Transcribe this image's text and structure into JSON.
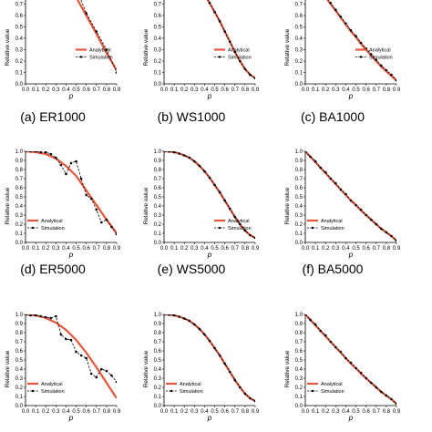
{
  "chart_data": [
    {
      "type": "line",
      "title": "",
      "caption": "(a) ER1000",
      "xlabel": "p",
      "ylabel": "Relative value",
      "xlim": [
        0,
        0.9
      ],
      "ylim": [
        0,
        1.0
      ],
      "xticks": [
        "0.0",
        "0.1",
        "0.2",
        "0.3",
        "0.4",
        "0.5",
        "0.6",
        "0.7",
        "0.8",
        "0.9"
      ],
      "yticks": [
        "0.0",
        "0.1",
        "0.2",
        "0.3",
        "0.4",
        "0.5",
        "0.6",
        "0.7",
        "0.8",
        "0.9"
      ],
      "legend": "bottom-right",
      "legend_entries": [
        "Analytical",
        "Simulation"
      ],
      "series": [
        {
          "name": "Analytical",
          "x": [
            0.0,
            0.1,
            0.2,
            0.3,
            0.4,
            0.5,
            0.6,
            0.7,
            0.8,
            0.9
          ],
          "values": [
            1.0,
            0.997,
            0.98,
            0.94,
            0.87,
            0.76,
            0.6,
            0.44,
            0.27,
            0.12
          ]
        },
        {
          "name": "Simulation",
          "x": [
            0.0,
            0.1,
            0.2,
            0.3,
            0.4,
            0.5,
            0.6,
            0.7,
            0.8,
            0.9
          ],
          "values": [
            1.0,
            1.0,
            0.99,
            0.98,
            0.9,
            0.84,
            0.62,
            0.46,
            0.3,
            0.1
          ]
        }
      ]
    },
    {
      "type": "line",
      "title": "",
      "caption": "(b) WS1000",
      "xlabel": "p",
      "ylabel": "Relative value",
      "xlim": [
        0,
        0.9
      ],
      "ylim": [
        0,
        1.0
      ],
      "xticks": [
        "0.0",
        "0.1",
        "0.2",
        "0.3",
        "0.4",
        "0.5",
        "0.6",
        "0.7",
        "0.8",
        "0.9"
      ],
      "yticks": [
        "0.0",
        "0.1",
        "0.2",
        "0.3",
        "0.4",
        "0.5",
        "0.6",
        "0.7",
        "0.8",
        "0.9"
      ],
      "legend": "bottom-right",
      "legend_entries": [
        "Analytical",
        "Simulation"
      ],
      "series": [
        {
          "name": "Analytical",
          "x": [
            0.0,
            0.05,
            0.1,
            0.15,
            0.2,
            0.25,
            0.3,
            0.35,
            0.4,
            0.45,
            0.5,
            0.55,
            0.6,
            0.65,
            0.7,
            0.75,
            0.8,
            0.85,
            0.9
          ],
          "values": [
            1.0,
            0.997,
            0.99,
            0.975,
            0.955,
            0.93,
            0.89,
            0.84,
            0.78,
            0.71,
            0.63,
            0.55,
            0.46,
            0.37,
            0.28,
            0.2,
            0.13,
            0.08,
            0.05
          ]
        },
        {
          "name": "Simulation",
          "x": [
            0.0,
            0.05,
            0.1,
            0.15,
            0.2,
            0.25,
            0.3,
            0.35,
            0.4,
            0.45,
            0.5,
            0.55,
            0.6,
            0.65,
            0.7,
            0.75,
            0.8,
            0.85,
            0.9
          ],
          "values": [
            1.0,
            0.997,
            0.99,
            0.975,
            0.955,
            0.93,
            0.89,
            0.84,
            0.78,
            0.71,
            0.63,
            0.55,
            0.46,
            0.37,
            0.28,
            0.2,
            0.13,
            0.08,
            0.05
          ]
        }
      ]
    },
    {
      "type": "line",
      "title": "",
      "caption": "(c) BA1000",
      "xlabel": "p",
      "ylabel": "Relative value",
      "xlim": [
        0,
        0.9
      ],
      "ylim": [
        0,
        1.0
      ],
      "xticks": [
        "0.0",
        "0.1",
        "0.2",
        "0.3",
        "0.4",
        "0.5",
        "0.6",
        "0.7",
        "0.8",
        "0.9"
      ],
      "yticks": [
        "0.0",
        "0.1",
        "0.2",
        "0.3",
        "0.4",
        "0.5",
        "0.6",
        "0.7",
        "0.8",
        "0.9"
      ],
      "legend": "bottom-right",
      "legend_entries": [
        "Analytical",
        "Simulation"
      ],
      "series": [
        {
          "name": "Analytical",
          "x": [
            0.0,
            0.05,
            0.1,
            0.15,
            0.2,
            0.25,
            0.3,
            0.35,
            0.4,
            0.45,
            0.5,
            0.55,
            0.6,
            0.65,
            0.7,
            0.75,
            0.8,
            0.85,
            0.9
          ],
          "values": [
            1.0,
            0.94,
            0.88,
            0.82,
            0.76,
            0.7,
            0.64,
            0.58,
            0.52,
            0.46,
            0.41,
            0.35,
            0.3,
            0.25,
            0.2,
            0.15,
            0.11,
            0.07,
            0.03
          ]
        },
        {
          "name": "Simulation",
          "x": [
            0.0,
            0.05,
            0.1,
            0.15,
            0.2,
            0.25,
            0.3,
            0.35,
            0.4,
            0.45,
            0.5,
            0.55,
            0.6,
            0.65,
            0.7,
            0.75,
            0.8,
            0.85,
            0.9
          ],
          "values": [
            1.0,
            0.95,
            0.89,
            0.83,
            0.77,
            0.71,
            0.65,
            0.59,
            0.53,
            0.47,
            0.42,
            0.36,
            0.31,
            0.26,
            0.21,
            0.16,
            0.12,
            0.08,
            0.03
          ]
        }
      ]
    },
    {
      "type": "line",
      "title": "",
      "caption": "(d) ER5000",
      "xlabel": "p",
      "ylabel": "Relative value",
      "xlim": [
        0,
        0.9
      ],
      "ylim": [
        0,
        1.0
      ],
      "xticks": [
        "0.0",
        "0.1",
        "0.2",
        "0.3",
        "0.4",
        "0.5",
        "0.6",
        "0.7",
        "0.8",
        "0.9"
      ],
      "yticks": [
        "0.0",
        "0.1",
        "0.2",
        "0.3",
        "0.4",
        "0.5",
        "0.6",
        "0.7",
        "0.8",
        "0.9",
        "1.0"
      ],
      "legend": "bottom-left",
      "legend_entries": [
        "Analytical",
        "Simulation"
      ],
      "series": [
        {
          "name": "Analytical",
          "x": [
            0.0,
            0.1,
            0.2,
            0.3,
            0.4,
            0.5,
            0.6,
            0.7,
            0.8,
            0.9
          ],
          "values": [
            1.0,
            0.99,
            0.97,
            0.92,
            0.84,
            0.73,
            0.57,
            0.41,
            0.25,
            0.1
          ]
        },
        {
          "name": "Simulation",
          "x": [
            0.0,
            0.05,
            0.1,
            0.15,
            0.2,
            0.25,
            0.3,
            0.35,
            0.4,
            0.45,
            0.5,
            0.55,
            0.6,
            0.65,
            0.7,
            0.75,
            0.8,
            0.85,
            0.9
          ],
          "values": [
            1.0,
            1.0,
            1.0,
            0.99,
            0.99,
            0.97,
            0.93,
            0.85,
            0.75,
            0.87,
            0.89,
            0.7,
            0.52,
            0.48,
            0.36,
            0.22,
            0.25,
            0.17,
            0.09
          ]
        }
      ]
    },
    {
      "type": "line",
      "title": "",
      "caption": "(e) WS5000",
      "xlabel": "p",
      "ylabel": "Relative value",
      "xlim": [
        0,
        0.9
      ],
      "ylim": [
        0,
        1.0
      ],
      "xticks": [
        "0.0",
        "0.1",
        "0.2",
        "0.3",
        "0.4",
        "0.5",
        "0.6",
        "0.7",
        "0.8",
        "0.9"
      ],
      "yticks": [
        "0.0",
        "0.1",
        "0.2",
        "0.3",
        "0.4",
        "0.5",
        "0.6",
        "0.7",
        "0.8",
        "0.9",
        "1.0"
      ],
      "legend": "bottom-right",
      "legend_entries": [
        "Analytical",
        "Simulation"
      ],
      "series": [
        {
          "name": "Analytical",
          "x": [
            0.0,
            0.05,
            0.1,
            0.15,
            0.2,
            0.25,
            0.3,
            0.35,
            0.4,
            0.45,
            0.5,
            0.55,
            0.6,
            0.65,
            0.7,
            0.75,
            0.8,
            0.85,
            0.9
          ],
          "values": [
            1.0,
            0.997,
            0.99,
            0.975,
            0.955,
            0.93,
            0.89,
            0.84,
            0.78,
            0.71,
            0.63,
            0.55,
            0.46,
            0.37,
            0.28,
            0.2,
            0.13,
            0.08,
            0.05
          ]
        },
        {
          "name": "Simulation",
          "x": [
            0.0,
            0.05,
            0.1,
            0.15,
            0.2,
            0.25,
            0.3,
            0.35,
            0.4,
            0.45,
            0.5,
            0.55,
            0.6,
            0.65,
            0.7,
            0.75,
            0.8,
            0.85,
            0.9
          ],
          "values": [
            1.0,
            0.997,
            0.99,
            0.975,
            0.955,
            0.93,
            0.89,
            0.84,
            0.78,
            0.71,
            0.63,
            0.55,
            0.46,
            0.37,
            0.28,
            0.2,
            0.13,
            0.08,
            0.05
          ]
        }
      ]
    },
    {
      "type": "line",
      "title": "",
      "caption": "(f) BA5000",
      "xlabel": "p",
      "ylabel": "Relative value",
      "xlim": [
        0,
        0.9
      ],
      "ylim": [
        0,
        1.0
      ],
      "xticks": [
        "0.0",
        "0.1",
        "0.2",
        "0.3",
        "0.4",
        "0.5",
        "0.6",
        "0.7",
        "0.8",
        "0.9"
      ],
      "yticks": [
        "0.0",
        "0.1",
        "0.2",
        "0.3",
        "0.4",
        "0.5",
        "0.6",
        "0.7",
        "0.8",
        "0.9",
        "1.0"
      ],
      "legend": "bottom-left",
      "legend_entries": [
        "Analytical",
        "Simulation"
      ],
      "series": [
        {
          "name": "Analytical",
          "x": [
            0.0,
            0.05,
            0.1,
            0.15,
            0.2,
            0.25,
            0.3,
            0.35,
            0.4,
            0.45,
            0.5,
            0.55,
            0.6,
            0.65,
            0.7,
            0.75,
            0.8,
            0.85,
            0.9
          ],
          "values": [
            1.0,
            0.94,
            0.88,
            0.82,
            0.76,
            0.7,
            0.64,
            0.58,
            0.52,
            0.46,
            0.41,
            0.35,
            0.3,
            0.25,
            0.2,
            0.15,
            0.11,
            0.07,
            0.02
          ]
        },
        {
          "name": "Simulation",
          "x": [
            0.0,
            0.05,
            0.1,
            0.15,
            0.2,
            0.25,
            0.3,
            0.35,
            0.4,
            0.45,
            0.5,
            0.55,
            0.6,
            0.65,
            0.7,
            0.75,
            0.8,
            0.85,
            0.9
          ],
          "values": [
            1.0,
            0.94,
            0.89,
            0.82,
            0.77,
            0.7,
            0.65,
            0.58,
            0.53,
            0.46,
            0.41,
            0.36,
            0.3,
            0.25,
            0.2,
            0.15,
            0.11,
            0.07,
            0.02
          ]
        }
      ]
    },
    {
      "type": "line",
      "title": "",
      "caption": "",
      "xlabel": "p",
      "ylabel": "Relative value",
      "xlim": [
        0,
        0.9
      ],
      "ylim": [
        0,
        1.0
      ],
      "xticks": [
        "0.0",
        "0.1",
        "0.2",
        "0.3",
        "0.4",
        "0.5",
        "0.6",
        "0.7",
        "0.8",
        "0.9"
      ],
      "yticks": [
        "0.0",
        "0.1",
        "0.2",
        "0.3",
        "0.4",
        "0.5",
        "0.6",
        "0.7",
        "0.8",
        "0.9",
        "1.0"
      ],
      "legend": "bottom-left",
      "legend_entries": [
        "Analytical",
        "Simulation"
      ],
      "series": [
        {
          "name": "Analytical",
          "x": [
            0.0,
            0.1,
            0.2,
            0.3,
            0.4,
            0.5,
            0.6,
            0.7,
            0.8,
            0.9
          ],
          "values": [
            1.0,
            0.99,
            0.96,
            0.91,
            0.83,
            0.72,
            0.58,
            0.42,
            0.25,
            0.08
          ]
        },
        {
          "name": "Simulation",
          "x": [
            0.0,
            0.05,
            0.1,
            0.15,
            0.2,
            0.25,
            0.3,
            0.35,
            0.4,
            0.45,
            0.5,
            0.55,
            0.6,
            0.65,
            0.7,
            0.75,
            0.8,
            0.85,
            0.9
          ],
          "values": [
            1.0,
            0.99,
            0.99,
            0.98,
            0.97,
            0.96,
            0.98,
            0.78,
            0.73,
            0.72,
            0.59,
            0.55,
            0.52,
            0.35,
            0.31,
            0.4,
            0.38,
            0.33,
            0.26
          ]
        }
      ]
    },
    {
      "type": "line",
      "title": "",
      "caption": "",
      "xlabel": "p",
      "ylabel": "Relative value",
      "xlim": [
        0,
        0.9
      ],
      "ylim": [
        0,
        1.0
      ],
      "xticks": [
        "0.0",
        "0.1",
        "0.2",
        "0.3",
        "0.4",
        "0.5",
        "0.6",
        "0.7",
        "0.8",
        "0.9"
      ],
      "yticks": [
        "0.0",
        "0.1",
        "0.2",
        "0.3",
        "0.4",
        "0.5",
        "0.6",
        "0.7",
        "0.8",
        "0.9",
        "1.0"
      ],
      "legend": "bottom-left",
      "legend_entries": [
        "Analytical",
        "Simulation"
      ],
      "series": [
        {
          "name": "Analytical",
          "x": [
            0.0,
            0.05,
            0.1,
            0.15,
            0.2,
            0.25,
            0.3,
            0.35,
            0.4,
            0.45,
            0.5,
            0.55,
            0.6,
            0.65,
            0.7,
            0.75,
            0.8,
            0.85,
            0.9
          ],
          "values": [
            1.0,
            0.997,
            0.99,
            0.975,
            0.955,
            0.93,
            0.89,
            0.84,
            0.78,
            0.71,
            0.63,
            0.55,
            0.46,
            0.37,
            0.28,
            0.2,
            0.13,
            0.08,
            0.05
          ]
        },
        {
          "name": "Simulation",
          "x": [
            0.0,
            0.05,
            0.1,
            0.15,
            0.2,
            0.25,
            0.3,
            0.35,
            0.4,
            0.45,
            0.5,
            0.55,
            0.6,
            0.65,
            0.7,
            0.75,
            0.8,
            0.85,
            0.9
          ],
          "values": [
            1.0,
            0.997,
            0.99,
            0.975,
            0.955,
            0.93,
            0.89,
            0.84,
            0.78,
            0.71,
            0.63,
            0.55,
            0.46,
            0.37,
            0.28,
            0.2,
            0.13,
            0.08,
            0.05
          ]
        }
      ]
    },
    {
      "type": "line",
      "title": "",
      "caption": "",
      "xlabel": "p",
      "ylabel": "Relative value",
      "xlim": [
        0,
        0.9
      ],
      "ylim": [
        0,
        1.0
      ],
      "xticks": [
        "0.0",
        "0.1",
        "0.2",
        "0.3",
        "0.4",
        "0.5",
        "0.6",
        "0.7",
        "0.8",
        "0.9"
      ],
      "yticks": [
        "0.0",
        "0.1",
        "0.2",
        "0.3",
        "0.4",
        "0.5",
        "0.6",
        "0.7",
        "0.8",
        "0.9",
        "1.0"
      ],
      "legend": "bottom-left",
      "legend_entries": [
        "Analytical",
        "Simulation"
      ],
      "series": [
        {
          "name": "Analytical",
          "x": [
            0.0,
            0.05,
            0.1,
            0.15,
            0.2,
            0.25,
            0.3,
            0.35,
            0.4,
            0.45,
            0.5,
            0.55,
            0.6,
            0.65,
            0.7,
            0.75,
            0.8,
            0.85,
            0.9
          ],
          "values": [
            1.0,
            0.94,
            0.88,
            0.82,
            0.76,
            0.7,
            0.64,
            0.58,
            0.52,
            0.46,
            0.41,
            0.35,
            0.3,
            0.25,
            0.2,
            0.15,
            0.11,
            0.07,
            0.02
          ]
        },
        {
          "name": "Simulation",
          "x": [
            0.0,
            0.05,
            0.1,
            0.15,
            0.2,
            0.25,
            0.3,
            0.35,
            0.4,
            0.45,
            0.5,
            0.55,
            0.6,
            0.65,
            0.7,
            0.75,
            0.8,
            0.85,
            0.9
          ],
          "values": [
            1.0,
            0.94,
            0.89,
            0.82,
            0.77,
            0.7,
            0.64,
            0.59,
            0.52,
            0.47,
            0.41,
            0.36,
            0.3,
            0.25,
            0.2,
            0.15,
            0.11,
            0.07,
            0.02
          ]
        }
      ]
    }
  ],
  "colors": {
    "analytical": "#e8553d",
    "simulation": "#000000",
    "axis": "#000000"
  }
}
